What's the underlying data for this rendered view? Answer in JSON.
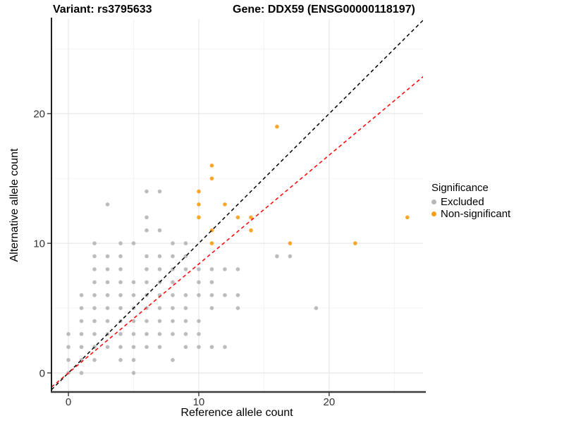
{
  "title": {
    "variant_label": "Variant: rs3795633",
    "gene_label": "Gene: DDX59 (ENSG00000118197)"
  },
  "chart_data": {
    "type": "scatter",
    "xlabel": "Reference allele count",
    "ylabel": "Alternative allele count",
    "xlim": [
      -1.3,
      27.2
    ],
    "ylim": [
      -1.47,
      27.3
    ],
    "x_ticks": [
      0,
      10,
      20
    ],
    "y_ticks": [
      0,
      10,
      20
    ],
    "x_minor_ticks": [
      5,
      15,
      25
    ],
    "y_minor_ticks": [
      5,
      15,
      25
    ],
    "grid": true,
    "colors": {
      "excluded": "#b6b6b6",
      "non_significant": "#F99E1B",
      "identity_line": "#000000",
      "ratio_line": "#FF0000",
      "grid_major": "#e7e7e7",
      "grid_minor": "#f2f2f2",
      "axis_line": "#3c3c3c",
      "tick_text": "#333333"
    },
    "series": [
      {
        "name": "Excluded",
        "color": "#b6b6b6",
        "points": [
          [
            0,
            0
          ],
          [
            1,
            0
          ],
          [
            5,
            0
          ],
          [
            0,
            1
          ],
          [
            1,
            1
          ],
          [
            2,
            1
          ],
          [
            4,
            1
          ],
          [
            5,
            1
          ],
          [
            8,
            1
          ],
          [
            0,
            2
          ],
          [
            1,
            2
          ],
          [
            2,
            2
          ],
          [
            3,
            2
          ],
          [
            4,
            2
          ],
          [
            5,
            2
          ],
          [
            6,
            2
          ],
          [
            7,
            2
          ],
          [
            9,
            2
          ],
          [
            10,
            2
          ],
          [
            11,
            2
          ],
          [
            12,
            2
          ],
          [
            0,
            3
          ],
          [
            1,
            3
          ],
          [
            2,
            3
          ],
          [
            3,
            3
          ],
          [
            4,
            3
          ],
          [
            5,
            3
          ],
          [
            6,
            3
          ],
          [
            7,
            3
          ],
          [
            8,
            3
          ],
          [
            9,
            3
          ],
          [
            10,
            3
          ],
          [
            1,
            4
          ],
          [
            2,
            4
          ],
          [
            3,
            4
          ],
          [
            4,
            4
          ],
          [
            5,
            4
          ],
          [
            6,
            4
          ],
          [
            7,
            4
          ],
          [
            8,
            4
          ],
          [
            9,
            4
          ],
          [
            10,
            4
          ],
          [
            1,
            5
          ],
          [
            2,
            5
          ],
          [
            3,
            5
          ],
          [
            4,
            5
          ],
          [
            5,
            5
          ],
          [
            6,
            5
          ],
          [
            7,
            5
          ],
          [
            8,
            5
          ],
          [
            9,
            5
          ],
          [
            11,
            5
          ],
          [
            13,
            5
          ],
          [
            19,
            5
          ],
          [
            1,
            6
          ],
          [
            2,
            6
          ],
          [
            3,
            6
          ],
          [
            4,
            6
          ],
          [
            5,
            6
          ],
          [
            6,
            6
          ],
          [
            7,
            6
          ],
          [
            8,
            6
          ],
          [
            9,
            6
          ],
          [
            10,
            6
          ],
          [
            11,
            6
          ],
          [
            12,
            6
          ],
          [
            13,
            6
          ],
          [
            2,
            7
          ],
          [
            3,
            7
          ],
          [
            4,
            7
          ],
          [
            5,
            7
          ],
          [
            6,
            7
          ],
          [
            7,
            7
          ],
          [
            8,
            7
          ],
          [
            10,
            7
          ],
          [
            11,
            7
          ],
          [
            2,
            8
          ],
          [
            3,
            8
          ],
          [
            4,
            8
          ],
          [
            6,
            8
          ],
          [
            7,
            8
          ],
          [
            8,
            8
          ],
          [
            9,
            8
          ],
          [
            10,
            8
          ],
          [
            11,
            8
          ],
          [
            12,
            8
          ],
          [
            13,
            8
          ],
          [
            2,
            9
          ],
          [
            3,
            9
          ],
          [
            4,
            9
          ],
          [
            6,
            9
          ],
          [
            7,
            9
          ],
          [
            8,
            9
          ],
          [
            9,
            9
          ],
          [
            16,
            9
          ],
          [
            17,
            9
          ],
          [
            2,
            10
          ],
          [
            4,
            10
          ],
          [
            5,
            10
          ],
          [
            8,
            10
          ],
          [
            9,
            10
          ],
          [
            6,
            11
          ],
          [
            7,
            11
          ],
          [
            6,
            12
          ],
          [
            3,
            13
          ],
          [
            6,
            14
          ],
          [
            7,
            14
          ]
        ]
      },
      {
        "name": "Non-significant",
        "color": "#F99E1B",
        "points": [
          [
            11,
            10
          ],
          [
            17,
            10
          ],
          [
            22,
            10
          ],
          [
            11,
            11
          ],
          [
            14,
            11
          ],
          [
            10,
            12
          ],
          [
            13,
            12
          ],
          [
            14,
            12
          ],
          [
            26,
            12
          ],
          [
            10,
            13
          ],
          [
            12,
            13
          ],
          [
            10,
            14
          ],
          [
            11,
            15
          ],
          [
            11,
            16
          ],
          [
            16,
            19
          ]
        ]
      }
    ],
    "lines": [
      {
        "name": "identity-line",
        "slope": 1.0,
        "intercept": 0,
        "color": "#000000"
      },
      {
        "name": "expected-ratio-line",
        "slope": 0.84,
        "intercept": 0,
        "color": "#FF0000"
      }
    ],
    "legend": {
      "title": "Significance",
      "position": "right",
      "entries": [
        {
          "label": "Excluded",
          "color": "#b6b6b6"
        },
        {
          "label": "Non-significant",
          "color": "#F99E1B"
        }
      ]
    }
  }
}
